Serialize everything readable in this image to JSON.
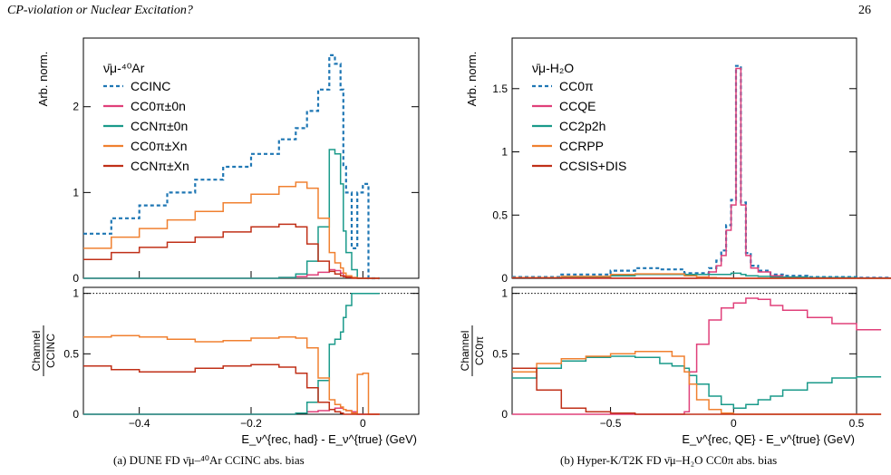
{
  "header": {
    "title": "CP-violation or Nuclear Excitation?",
    "page": "26"
  },
  "captions": {
    "a": "(a) DUNE FD ν̄μ–⁴⁰Ar CCINC abs. bias",
    "b": "(b) Hyper-K/T2K FD ν̄μ–H₂O CC0π abs. bias"
  },
  "colors": {
    "cc_inclusive": "#1f77b4",
    "teal": "#1a9a8a",
    "pink": "#e0407a",
    "orange": "#f08030",
    "darkred": "#c03018"
  },
  "chart_data": [
    {
      "type": "line",
      "panel": "left-top",
      "target": "ν̄μ-⁴⁰Ar",
      "ylabel": "Arb. norm.",
      "xlim": [
        -0.5,
        0.1
      ],
      "ylim": [
        0,
        2.8
      ],
      "yticks": [
        "0",
        "1",
        "2"
      ],
      "x": [
        -0.5,
        -0.45,
        -0.4,
        -0.35,
        -0.3,
        -0.25,
        -0.2,
        -0.15,
        -0.12,
        -0.1,
        -0.08,
        -0.06,
        -0.05,
        -0.04,
        -0.035,
        -0.03,
        -0.02,
        -0.01,
        0,
        0.01,
        0.02
      ],
      "series": [
        {
          "name": "CCINC",
          "style": "dashed",
          "color": "#1f77b4",
          "values": [
            0.52,
            0.7,
            0.85,
            1.0,
            1.15,
            1.3,
            1.45,
            1.62,
            1.75,
            1.95,
            2.2,
            2.6,
            2.5,
            2.2,
            1.3,
            1.0,
            0.35,
            1.0,
            1.1,
            0,
            0
          ]
        },
        {
          "name": "CC0π±0n",
          "color": "#e0407a",
          "values": [
            0,
            0,
            0,
            0,
            0,
            0,
            0,
            0.01,
            0.02,
            0.04,
            0.07,
            0.1,
            0.09,
            0.06,
            0.03,
            0.02,
            0.01,
            0,
            0,
            0,
            0
          ]
        },
        {
          "name": "CCNπ±0n",
          "color": "#1a9a8a",
          "values": [
            0,
            0,
            0,
            0,
            0,
            0,
            0,
            0.01,
            0.05,
            0.2,
            0.6,
            1.5,
            1.45,
            1.1,
            0.55,
            0.3,
            0.1,
            0,
            0,
            0,
            0
          ]
        },
        {
          "name": "CC0π±Xn",
          "color": "#f08030",
          "values": [
            0.35,
            0.48,
            0.58,
            0.68,
            0.78,
            0.88,
            0.98,
            1.07,
            1.12,
            1.05,
            0.7,
            0.3,
            0.18,
            0.12,
            0.06,
            0.03,
            0.01,
            0,
            0,
            0,
            0
          ]
        },
        {
          "name": "CCNπ±Xn",
          "color": "#c03018",
          "values": [
            0.22,
            0.3,
            0.36,
            0.42,
            0.48,
            0.54,
            0.6,
            0.63,
            0.6,
            0.4,
            0.2,
            0.08,
            0.05,
            0.03,
            0.02,
            0.01,
            0,
            0,
            0,
            0,
            0
          ]
        }
      ]
    },
    {
      "type": "line",
      "panel": "left-bottom",
      "ylabel": "Channel / CCINC",
      "xlabel": "E_ν^{rec, had} - E_ν^{true} (GeV)",
      "xlim": [
        -0.5,
        0.1
      ],
      "ylim": [
        0,
        1.05
      ],
      "xticks": [
        "−0.4",
        "−0.2",
        "0"
      ],
      "yticks": [
        "0",
        "0.5",
        "1"
      ],
      "x": [
        -0.5,
        -0.45,
        -0.4,
        -0.35,
        -0.3,
        -0.25,
        -0.2,
        -0.15,
        -0.12,
        -0.1,
        -0.08,
        -0.06,
        -0.05,
        -0.04,
        -0.035,
        -0.03,
        -0.02,
        -0.01,
        0,
        0.01,
        0.02
      ],
      "series": [
        {
          "name": "CC0π±0n",
          "color": "#e0407a",
          "values": [
            0,
            0,
            0,
            0,
            0,
            0,
            0,
            0,
            0.01,
            0.02,
            0.03,
            0.04,
            0.05,
            0.05,
            0.04,
            0.03,
            0.02,
            0,
            0,
            0,
            0
          ]
        },
        {
          "name": "CCNπ±0n",
          "color": "#1a9a8a",
          "values": [
            0,
            0,
            0,
            0,
            0,
            0,
            0,
            0,
            0.01,
            0.1,
            0.28,
            0.58,
            0.62,
            0.68,
            0.8,
            0.9,
            1.0,
            1.0,
            1.0,
            1.0,
            1.0
          ]
        },
        {
          "name": "CC0π±Xn",
          "color": "#f08030",
          "values": [
            0.64,
            0.65,
            0.64,
            0.62,
            0.6,
            0.61,
            0.63,
            0.64,
            0.63,
            0.55,
            0.3,
            0.12,
            0.08,
            0.06,
            0.04,
            0.03,
            0.01,
            0.33,
            0.34,
            0,
            0
          ]
        },
        {
          "name": "CCNπ±Xn",
          "color": "#c03018",
          "values": [
            0.4,
            0.37,
            0.35,
            0.35,
            0.38,
            0.4,
            0.41,
            0.39,
            0.34,
            0.22,
            0.1,
            0.04,
            0.02,
            0.01,
            0,
            0,
            0,
            0,
            0,
            0,
            0
          ]
        }
      ]
    },
    {
      "type": "line",
      "panel": "right-top",
      "target": "ν̄μ-H₂O",
      "ylabel": "Arb. norm.",
      "xlim": [
        -0.9,
        0.5
      ],
      "ylim": [
        0,
        1.9
      ],
      "yticks": [
        "0",
        "0.5",
        "1",
        "1.5"
      ],
      "x": [
        -0.9,
        -0.7,
        -0.5,
        -0.4,
        -0.3,
        -0.2,
        -0.15,
        -0.1,
        -0.07,
        -0.05,
        -0.03,
        -0.01,
        0.01,
        0.03,
        0.05,
        0.07,
        0.1,
        0.15,
        0.2,
        0.3,
        0.5
      ],
      "series": [
        {
          "name": "CC0π",
          "style": "dashed",
          "color": "#1f77b4",
          "values": [
            0.01,
            0.03,
            0.06,
            0.08,
            0.07,
            0.04,
            0.04,
            0.08,
            0.14,
            0.22,
            0.42,
            0.62,
            1.68,
            0.6,
            0.2,
            0.1,
            0.06,
            0.03,
            0.02,
            0.01,
            0.005
          ]
        },
        {
          "name": "CCQE",
          "color": "#e0407a",
          "values": [
            0,
            0,
            0,
            0,
            0,
            0,
            0.01,
            0.05,
            0.1,
            0.18,
            0.38,
            0.58,
            1.66,
            0.58,
            0.18,
            0.08,
            0.05,
            0.02,
            0.01,
            0.005,
            0.003
          ]
        },
        {
          "name": "CC2p2h",
          "color": "#1a9a8a",
          "values": [
            0,
            0.01,
            0.02,
            0.03,
            0.03,
            0.03,
            0.03,
            0.03,
            0.03,
            0.03,
            0.03,
            0.04,
            0.04,
            0.03,
            0.02,
            0.02,
            0.015,
            0.01,
            0.01,
            0.005,
            0.002
          ]
        },
        {
          "name": "CCRPP",
          "color": "#f08030",
          "values": [
            0.005,
            0.015,
            0.03,
            0.035,
            0.035,
            0.02,
            0.01,
            0.005,
            0.003,
            0.002,
            0.001,
            0,
            0,
            0,
            0,
            0,
            0,
            0,
            0,
            0,
            0
          ]
        },
        {
          "name": "CCSIS+DIS",
          "color": "#c03018",
          "values": [
            0.003,
            0.002,
            0.001,
            0,
            0,
            0,
            0,
            0,
            0,
            0,
            0,
            0,
            0,
            0,
            0,
            0,
            0,
            0,
            0,
            0,
            0
          ]
        }
      ]
    },
    {
      "type": "line",
      "panel": "right-bottom",
      "ylabel": "Channel / CC0π",
      "xlabel": "E_ν^{rec, QE} - E_ν^{true} (GeV)",
      "xlim": [
        -0.9,
        0.5
      ],
      "ylim": [
        0,
        1.05
      ],
      "xticks": [
        "−0.5",
        "0",
        "0.5"
      ],
      "yticks": [
        "0",
        "0.5",
        "1"
      ],
      "x": [
        -0.9,
        -0.8,
        -0.7,
        -0.6,
        -0.5,
        -0.4,
        -0.3,
        -0.25,
        -0.2,
        -0.18,
        -0.15,
        -0.1,
        -0.05,
        0,
        0.05,
        0.1,
        0.15,
        0.2,
        0.3,
        0.4,
        0.5
      ],
      "series": [
        {
          "name": "CCQE",
          "color": "#e0407a",
          "values": [
            0,
            0,
            0,
            0,
            0,
            0,
            0,
            0,
            0.02,
            0.35,
            0.58,
            0.78,
            0.88,
            0.92,
            0.96,
            0.95,
            0.9,
            0.86,
            0.8,
            0.75,
            0.7
          ]
        },
        {
          "name": "CC2p2h",
          "color": "#1a9a8a",
          "values": [
            0.3,
            0.38,
            0.44,
            0.47,
            0.48,
            0.47,
            0.42,
            0.4,
            0.38,
            0.32,
            0.25,
            0.15,
            0.08,
            0.05,
            0.08,
            0.12,
            0.15,
            0.2,
            0.26,
            0.3,
            0.31
          ]
        },
        {
          "name": "CCRPP",
          "color": "#f08030",
          "values": [
            0.35,
            0.42,
            0.46,
            0.48,
            0.5,
            0.52,
            0.52,
            0.48,
            0.35,
            0.25,
            0.12,
            0.04,
            0.01,
            0,
            0,
            0,
            0,
            0,
            0,
            0,
            0
          ]
        },
        {
          "name": "CCSIS+DIS",
          "color": "#c03018",
          "values": [
            0.38,
            0.2,
            0.05,
            0.02,
            0.01,
            0,
            0,
            0,
            0,
            0,
            0,
            0,
            0,
            0,
            0,
            0,
            0,
            0,
            0,
            0,
            0
          ]
        }
      ]
    }
  ]
}
